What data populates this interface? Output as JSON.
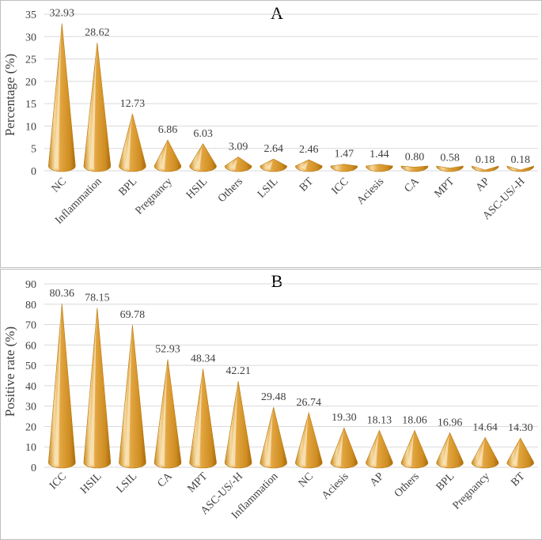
{
  "colors": {
    "cone_light": "#f3cf86",
    "cone_mid": "#e0a03a",
    "cone_dark": "#b8780f",
    "grid": "#d9d9d9",
    "text": "#404040"
  },
  "chart_data": [
    {
      "type": "bar",
      "mark": "cone",
      "title": "A",
      "xlabel": "",
      "ylabel": "Percentage (%)",
      "ylim": [
        0,
        35
      ],
      "yticks": [
        0,
        5,
        10,
        15,
        20,
        25,
        30,
        35
      ],
      "grid": true,
      "categories": [
        "NC",
        "Inflammation",
        "BPL",
        "Pregnancy",
        "HSIL",
        "Others",
        "LSIL",
        "BT",
        "ICC",
        "Aciesis",
        "CA",
        "MPT",
        "AP",
        "ASC-US/-H"
      ],
      "values": [
        32.93,
        28.62,
        12.73,
        6.86,
        6.03,
        3.09,
        2.64,
        2.46,
        1.47,
        1.44,
        0.8,
        0.58,
        0.18,
        0.18
      ],
      "labels": [
        "32.93",
        "28.62",
        "12.73",
        "6.86",
        "6.03",
        "3.09",
        "2.64",
        "2.46",
        "1.47",
        "1.44",
        "0.80",
        "0.58",
        "0.18",
        "0.18"
      ]
    },
    {
      "type": "bar",
      "mark": "cone",
      "title": "B",
      "xlabel": "",
      "ylabel": "Positive rate (%)",
      "ylim": [
        0,
        90
      ],
      "yticks": [
        0,
        10,
        20,
        30,
        40,
        50,
        60,
        70,
        80,
        90
      ],
      "grid": true,
      "categories": [
        "ICC",
        "HSIL",
        "LSIL",
        "CA",
        "MPT",
        "ASC-US/-H",
        "Inflammation",
        "NC",
        "Aciesis",
        "AP",
        "Others",
        "BPL",
        "Pregnancy",
        "BT"
      ],
      "values": [
        80.36,
        78.15,
        69.78,
        52.93,
        48.34,
        42.21,
        29.48,
        26.74,
        19.3,
        18.13,
        18.06,
        16.96,
        14.64,
        14.3
      ],
      "labels": [
        "80.36",
        "78.15",
        "69.78",
        "52.93",
        "48.34",
        "42.21",
        "29.48",
        "26.74",
        "19.30",
        "18.13",
        "18.06",
        "16.96",
        "14.64",
        "14.30"
      ]
    }
  ]
}
